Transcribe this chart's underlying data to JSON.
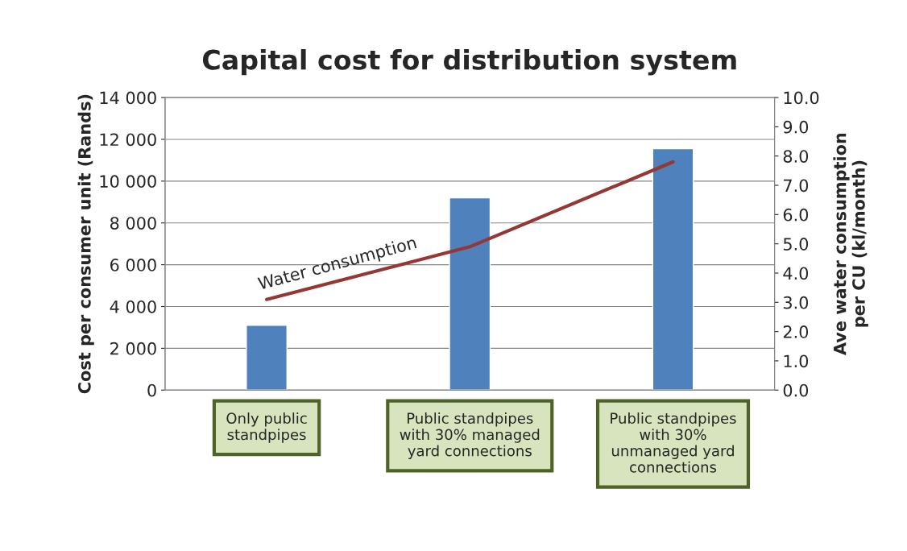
{
  "chart_data": {
    "type": "bar",
    "title": "Capital cost for distribution system",
    "categories": [
      "Only public\nstandpipes",
      "Public standpipes\nwith 30% managed\nyard connections",
      "Public standpipes\nwith 30%\nunmanaged yard\nconnections"
    ],
    "series": [
      {
        "color": "#4f81bd",
        "values": [
          3100,
          9200,
          11550
        ]
      },
      {
        "type": "line",
        "name": "Water consumption",
        "axis": "y2",
        "color": "#953735",
        "values": [
          3.1,
          4.9,
          7.8
        ]
      }
    ],
    "ylabel": "Cost per consumer unit (Rands)",
    "y2label": "Ave water consumption\nper CU (kl/month)",
    "ylim": [
      0,
      14000
    ],
    "yticks": [
      {
        "value": 0,
        "label": "0"
      },
      {
        "value": 2000,
        "label": "2 000"
      },
      {
        "value": 4000,
        "label": "4 000"
      },
      {
        "value": 6000,
        "label": "6 000"
      },
      {
        "value": 8000,
        "label": "8 000"
      },
      {
        "value": 10000,
        "label": "10 000"
      },
      {
        "value": 12000,
        "label": "12 000"
      },
      {
        "value": 14000,
        "label": "14 000"
      }
    ],
    "y2lim": [
      0,
      10
    ],
    "y2ticks": [
      {
        "value": 0,
        "label": "0.0"
      },
      {
        "value": 1,
        "label": "1.0"
      },
      {
        "value": 2,
        "label": "2.0"
      },
      {
        "value": 3,
        "label": "3.0"
      },
      {
        "value": 4,
        "label": "4.0"
      },
      {
        "value": 5,
        "label": "5.0"
      },
      {
        "value": 6,
        "label": "6.0"
      },
      {
        "value": 7,
        "label": "7.0"
      },
      {
        "value": 8,
        "label": "8.0"
      },
      {
        "value": 9,
        "label": "9.0"
      },
      {
        "value": 10,
        "label": "10.0"
      }
    ],
    "grid": "y",
    "legend": false
  }
}
